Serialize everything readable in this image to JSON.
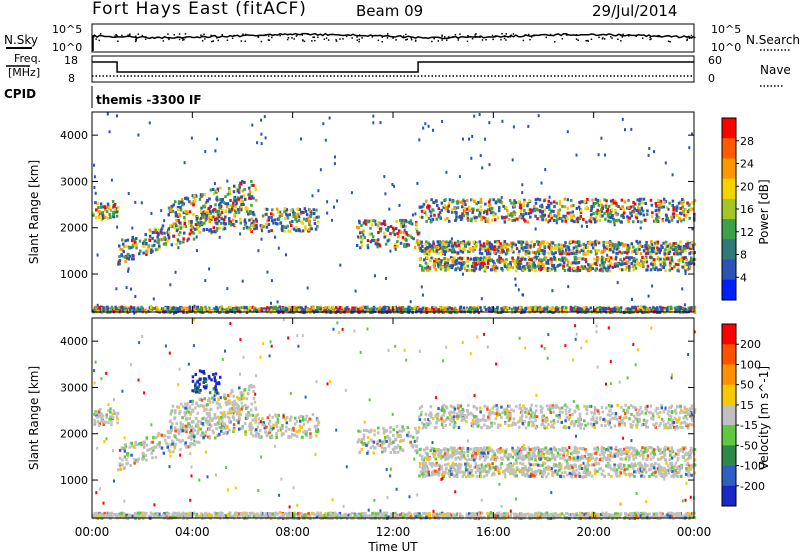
{
  "header": {
    "station": "Fort Hays East (fitACF)",
    "beam": "Beam 09",
    "date": "29/Jul/2014"
  },
  "noise_panel": {
    "left_label": "N.Sky",
    "right_label": "N.Search",
    "left_ticks": [
      "10^5",
      "10^0"
    ],
    "right_ticks": [
      "10^5",
      "10^0"
    ]
  },
  "freq_panel": {
    "left_label_line1": "Freq.",
    "left_label_line2": "[MHz]",
    "left_ticks": [
      "18",
      "8"
    ],
    "right_label": "Nave",
    "right_ticks": [
      "60",
      "0"
    ]
  },
  "cpid_panel": {
    "label": "CPID",
    "text": "themis -3300 IF"
  },
  "xaxis": {
    "label": "Time UT",
    "ticks": [
      "00:00",
      "04:00",
      "08:00",
      "12:00",
      "16:00",
      "20:00",
      "00:00"
    ]
  },
  "chart_data": [
    {
      "type": "heatmap",
      "title": "Power",
      "ylabel": "Slant Range [km]",
      "xlabel": "",
      "x_range_hours": [
        0,
        24
      ],
      "y_range_km": [
        180,
        4500
      ],
      "y_ticks": [
        "4000",
        "3000",
        "2000",
        "1000"
      ],
      "colorbar_label": "Power [dB]",
      "colorbar_ticks": [
        "28",
        "24",
        "20",
        "16",
        "12",
        "8",
        "4"
      ],
      "colorbar_colors": [
        "#0020ff",
        "#2a52b8",
        "#2f7a78",
        "#3ca24a",
        "#a0c628",
        "#f2d400",
        "#ff9800",
        "#ff5a00",
        "#ff0000"
      ]
    },
    {
      "type": "heatmap",
      "title": "Velocity",
      "ylabel": "Slant Range [km]",
      "xlabel": "Time UT",
      "x_range_hours": [
        0,
        24
      ],
      "y_range_km": [
        180,
        4500
      ],
      "y_ticks": [
        "4000",
        "3000",
        "2000",
        "1000"
      ],
      "colorbar_label": "Velocity [m s^-1]",
      "colorbar_ticks": [
        "200",
        "100",
        "50",
        "15",
        "-15",
        "-50",
        "-100",
        "-200"
      ],
      "colorbar_colors": [
        "#1a28c8",
        "#2f60c0",
        "#2f8a4a",
        "#60c840",
        "#c0c0c0",
        "#f8c800",
        "#ff9000",
        "#ff5000",
        "#ff0000"
      ]
    }
  ]
}
